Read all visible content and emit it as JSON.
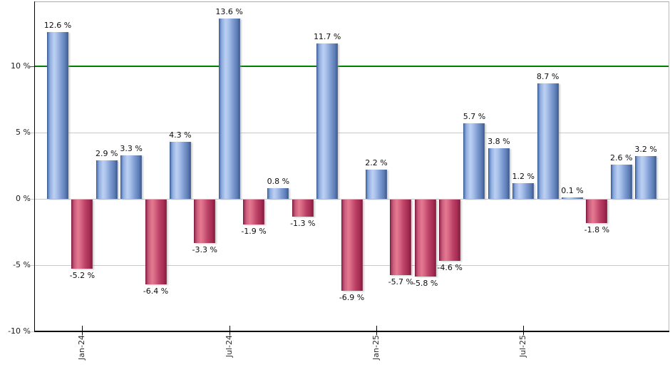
{
  "chart_data": {
    "type": "bar",
    "title": "",
    "description": "Monthly return bar chart: blue bars positive, red bars negative, green threshold line at 10%",
    "values": [
      12.6,
      -5.2,
      2.9,
      3.3,
      -6.4,
      4.3,
      -3.3,
      13.6,
      -1.9,
      0.8,
      -1.3,
      11.7,
      -6.9,
      2.2,
      -5.7,
      -5.8,
      -4.6,
      5.7,
      3.8,
      1.2,
      8.7,
      0.1,
      -1.8,
      2.6,
      3.2
    ],
    "value_label_format": "{v} %",
    "x_ticks": [
      {
        "bar_index": 1,
        "label": "Jan-24"
      },
      {
        "bar_index": 7,
        "label": "Jul-24"
      },
      {
        "bar_index": 13,
        "label": "Jan-25"
      },
      {
        "bar_index": 19,
        "label": "Jul-25"
      }
    ],
    "y_ticks": [
      {
        "value": 10,
        "label": "10 %"
      },
      {
        "value": 5,
        "label": "5 %"
      },
      {
        "value": 0,
        "label": "0 %"
      },
      {
        "value": -5,
        "label": "-5 %"
      },
      {
        "value": -10,
        "label": "-10 %"
      }
    ],
    "ylim": [
      -10,
      14.84
    ],
    "grid": true,
    "legend": "none",
    "threshold_line": {
      "value": 10,
      "color": "#008000"
    },
    "colors": {
      "positive_light": "#bdd0f2",
      "positive_mid": "#7f9cd2",
      "positive_dark": "#2e4d85",
      "negative_light": "#e4798f",
      "negative_mid": "#bb4065",
      "negative_dark": "#731232",
      "gridline": "#c9c9c9",
      "axis": "#000000",
      "background": "#ffffff"
    }
  }
}
